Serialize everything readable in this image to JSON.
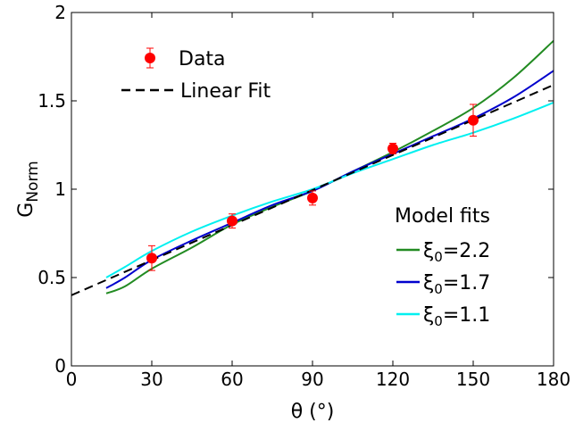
{
  "chart_data": {
    "type": "line",
    "xlabel": "θ (°)",
    "ylabel_main": "G",
    "ylabel_sub": "Norm",
    "xlim": [
      0,
      180
    ],
    "ylim": [
      0,
      2
    ],
    "xticks": [
      0,
      30,
      60,
      90,
      120,
      150,
      180
    ],
    "yticks": [
      0,
      0.5,
      1,
      1.5,
      2
    ],
    "ytick_labels": [
      "0",
      "0.5",
      "1",
      "1.5",
      "2"
    ],
    "grid": false,
    "data_series": {
      "name": "Data",
      "color": "#ff0000",
      "x": [
        30,
        60,
        90,
        120,
        150
      ],
      "y": [
        0.61,
        0.82,
        0.95,
        1.23,
        1.39
      ],
      "err": [
        0.07,
        0.04,
        0.04,
        0.03,
        0.09
      ]
    },
    "linear_fit": {
      "name": "Linear Fit",
      "color": "#000000",
      "x": [
        0,
        180
      ],
      "y": [
        0.4,
        1.59
      ]
    },
    "model_legend_title": "Model fits",
    "model_series": [
      {
        "name_symbol": "ξ",
        "name_sub": "0",
        "name_value": "=2.2",
        "color": "#228b22",
        "x": [
          13,
          20,
          30,
          45,
          60,
          75,
          90,
          105,
          120,
          135,
          150,
          165,
          180
        ],
        "y": [
          0.41,
          0.45,
          0.55,
          0.67,
          0.8,
          0.9,
          0.99,
          1.1,
          1.21,
          1.33,
          1.46,
          1.63,
          1.84
        ]
      },
      {
        "name_symbol": "ξ",
        "name_sub": "0",
        "name_value": "=1.7",
        "color": "#0000cd",
        "x": [
          13,
          20,
          30,
          45,
          60,
          75,
          90,
          105,
          120,
          135,
          150,
          165,
          180
        ],
        "y": [
          0.44,
          0.5,
          0.6,
          0.71,
          0.81,
          0.91,
          0.99,
          1.1,
          1.2,
          1.3,
          1.4,
          1.52,
          1.67
        ]
      },
      {
        "name_symbol": "ξ",
        "name_sub": "0",
        "name_value": "=1.1",
        "color": "#00f0f0",
        "x": [
          13,
          20,
          30,
          45,
          60,
          75,
          90,
          105,
          120,
          135,
          150,
          165,
          180
        ],
        "y": [
          0.5,
          0.56,
          0.65,
          0.76,
          0.85,
          0.93,
          1.0,
          1.09,
          1.17,
          1.25,
          1.32,
          1.4,
          1.49
        ]
      }
    ]
  }
}
